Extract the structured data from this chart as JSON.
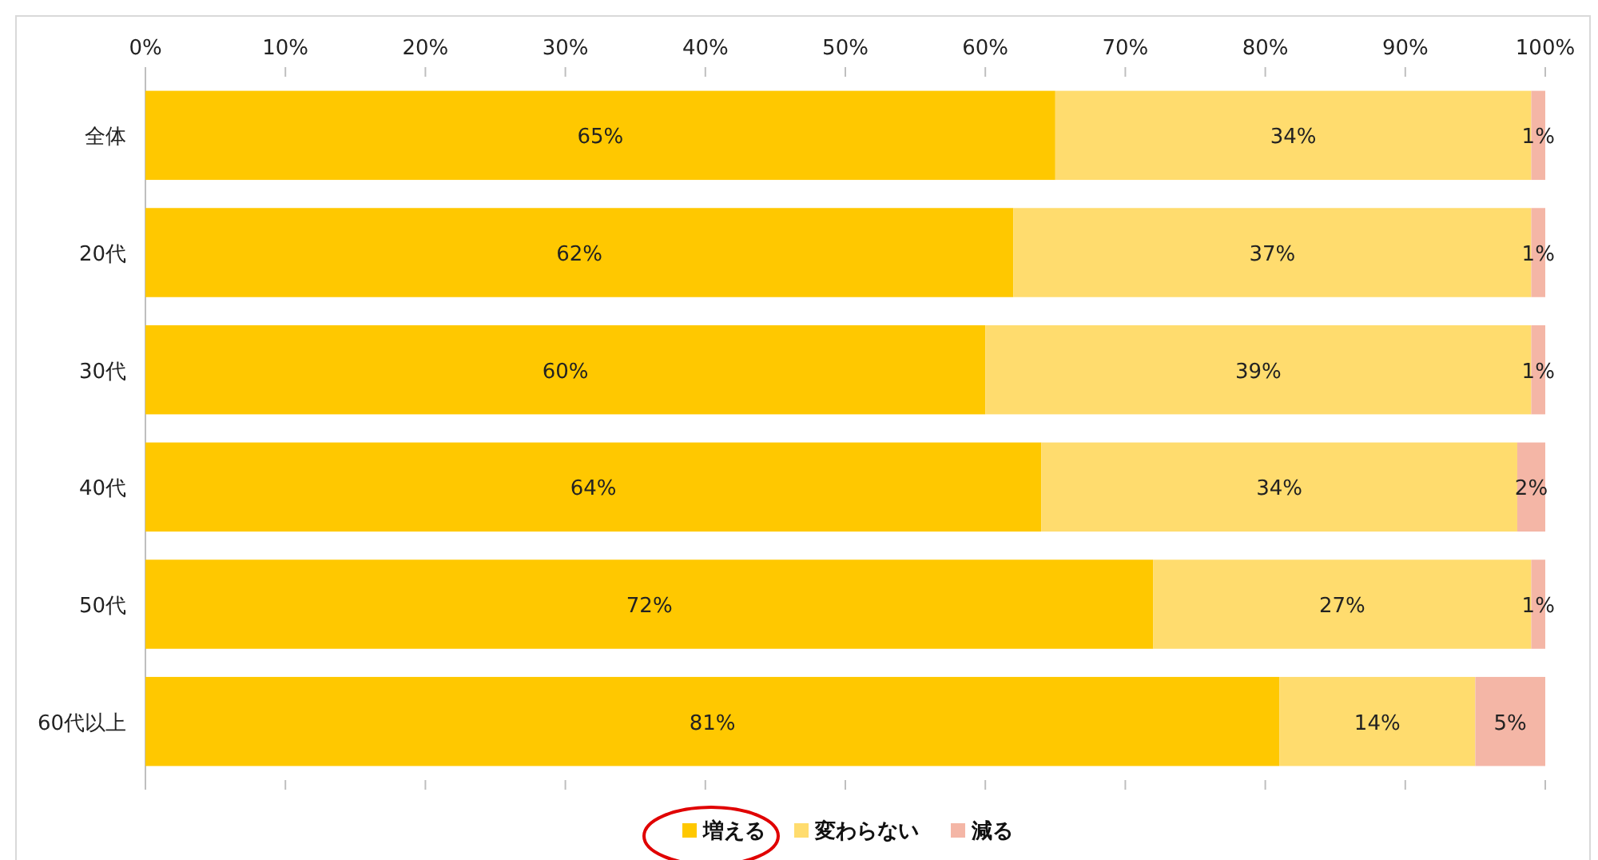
{
  "chart_data": {
    "type": "bar",
    "orientation": "horizontal",
    "stacked": true,
    "categories": [
      "全体",
      "20代",
      "30代",
      "40代",
      "50代",
      "60代以上"
    ],
    "series": [
      {
        "name": "増える",
        "color": "#ffc800",
        "values": [
          65,
          62,
          60,
          64,
          72,
          81
        ],
        "value_labels": [
          "65%",
          "62%",
          "60%",
          "64%",
          "72%",
          "81%"
        ]
      },
      {
        "name": "変わらない",
        "color": "#ffdc6e",
        "values": [
          34,
          37,
          39,
          34,
          27,
          14
        ],
        "value_labels": [
          "34%",
          "37%",
          "39%",
          "34%",
          "27%",
          "14%"
        ]
      },
      {
        "name": "減る",
        "color": "#f4b6a6",
        "values": [
          1,
          1,
          1,
          2,
          1,
          5
        ],
        "value_labels": [
          "1%",
          "1%",
          "1%",
          "2%",
          "1%",
          "5%"
        ]
      }
    ],
    "xlim": [
      0,
      100
    ],
    "xticks": [
      {
        "value": 0,
        "label": "0%"
      },
      {
        "value": 10,
        "label": "10%"
      },
      {
        "value": 20,
        "label": "20%"
      },
      {
        "value": 30,
        "label": "30%"
      },
      {
        "value": 40,
        "label": "40%"
      },
      {
        "value": 50,
        "label": "50%"
      },
      {
        "value": 60,
        "label": "60%"
      },
      {
        "value": 70,
        "label": "70%"
      },
      {
        "value": 80,
        "label": "80%"
      },
      {
        "value": 90,
        "label": "90%"
      },
      {
        "value": 100,
        "label": "100%"
      }
    ],
    "legend": "bottom"
  }
}
